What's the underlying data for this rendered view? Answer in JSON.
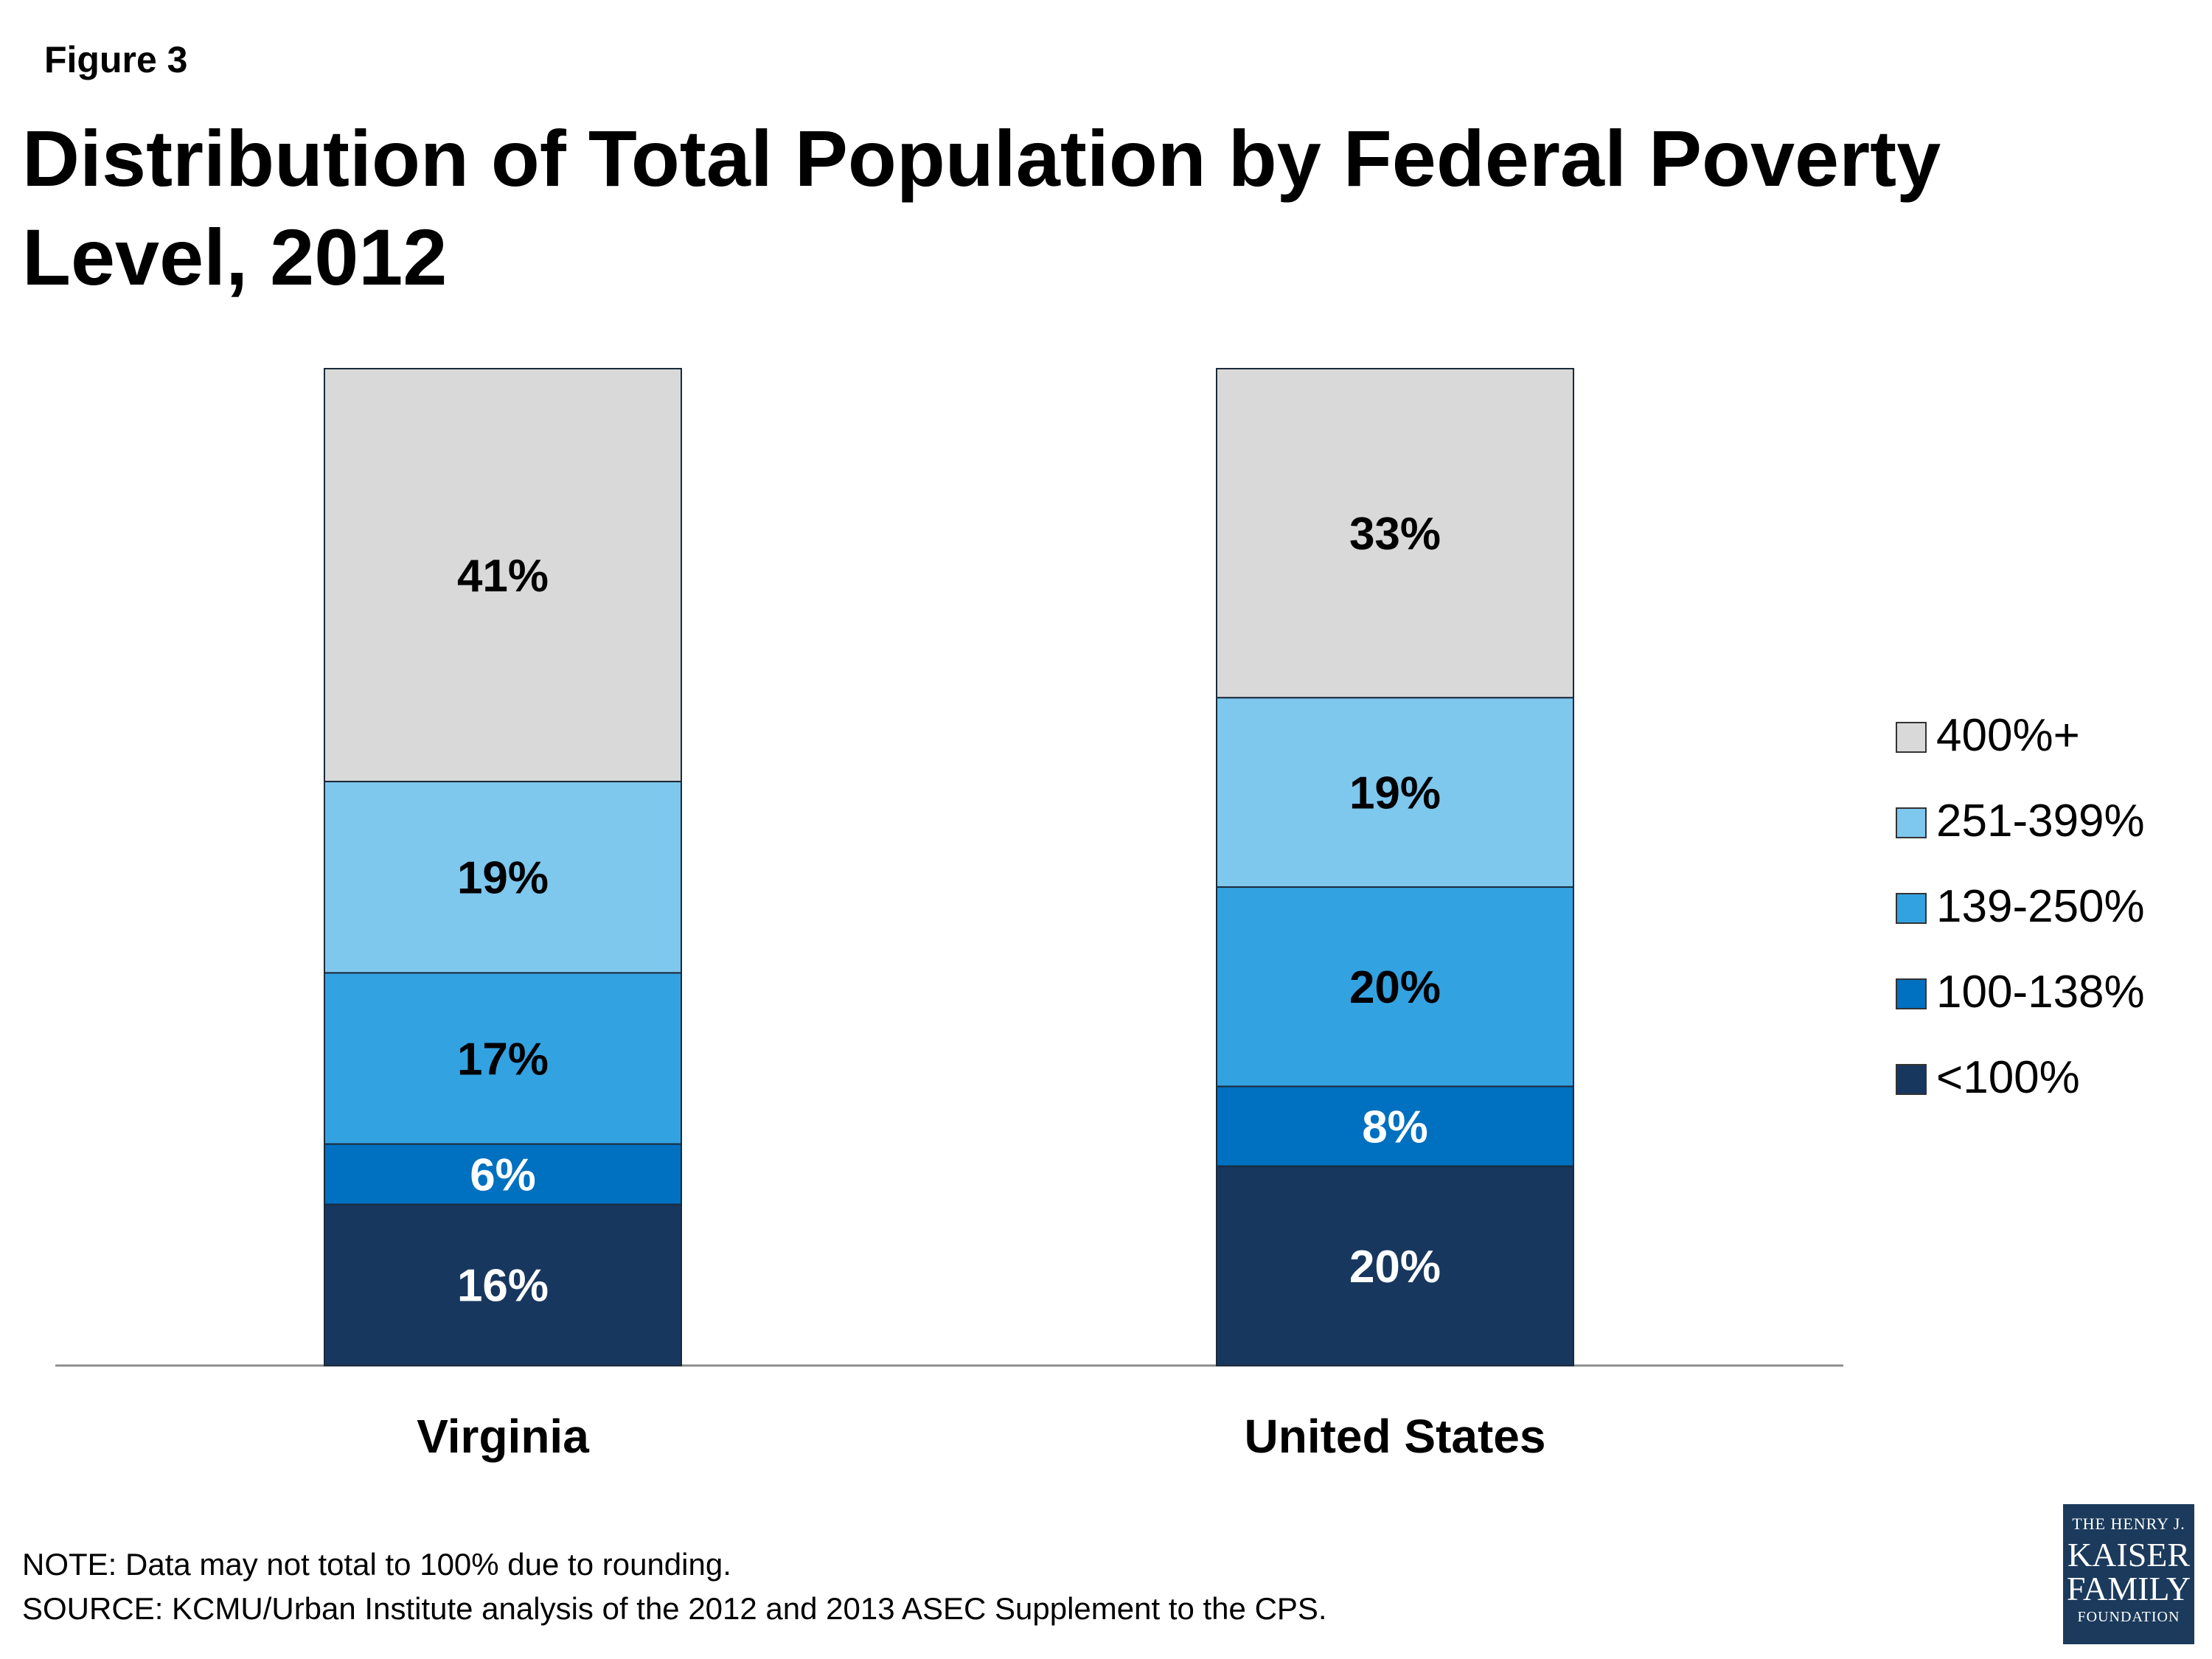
{
  "figure_label": "Figure 3",
  "title": "Distribution of Total Population by Federal Poverty Level, 2012",
  "notes": {
    "note": "NOTE: Data may not total to 100% due to rounding.",
    "source": "SOURCE: KCMU/Urban Institute analysis of the 2012 and 2013 ASEC Supplement to the CPS."
  },
  "logo": {
    "line1": "THE HENRY J.",
    "line2": "KAISER",
    "line3": "FAMILY",
    "line4": "FOUNDATION"
  },
  "colors": {
    "<100%": "#17375e",
    "100-138%": "#0070c0",
    "139-250%": "#33a2e1",
    "251-399%": "#7ec7ed",
    "400%+": "#d9d9d9"
  },
  "chart_data": {
    "type": "bar",
    "stacked": true,
    "categories": [
      "Virginia",
      "United States"
    ],
    "series": [
      {
        "name": "<100%",
        "values": [
          16,
          20
        ]
      },
      {
        "name": "100-138%",
        "values": [
          6,
          8
        ]
      },
      {
        "name": "139-250%",
        "values": [
          17,
          20
        ]
      },
      {
        "name": "251-399%",
        "values": [
          19,
          19
        ]
      },
      {
        "name": "400%+",
        "values": [
          41,
          33
        ]
      }
    ],
    "data_labels": [
      [
        "16%",
        "20%"
      ],
      [
        "6%",
        "8%"
      ],
      [
        "17%",
        "20%"
      ],
      [
        "19%",
        "19%"
      ],
      [
        "41%",
        "33%"
      ]
    ],
    "legend_order": [
      "400%+",
      "251-399%",
      "139-250%",
      "100-138%",
      "<100%"
    ],
    "legend_position": "right",
    "grid": false,
    "ylim": [
      0,
      100
    ],
    "xlabel": "",
    "ylabel": ""
  }
}
